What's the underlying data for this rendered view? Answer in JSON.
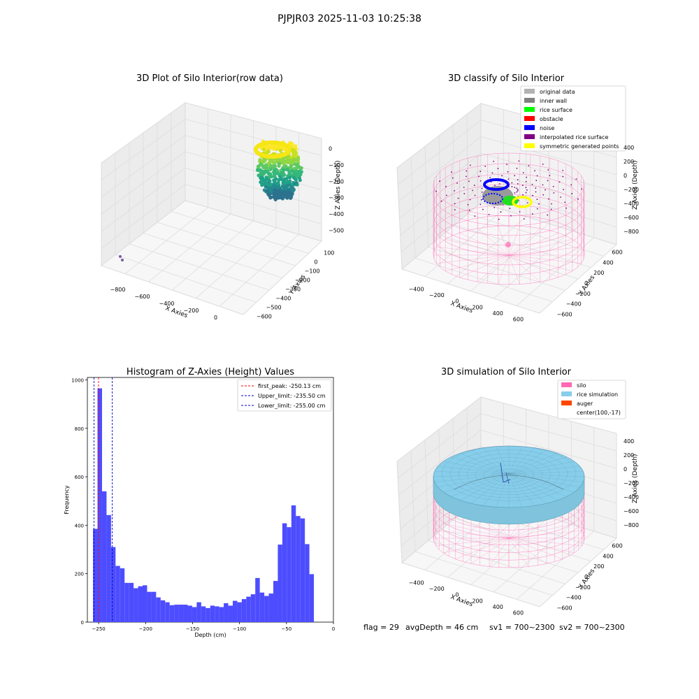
{
  "figure": {
    "suptitle": "PJPJR03 2025-11-03 10:25:38",
    "footer": {
      "flag": "flag = 29",
      "avg_depth": "avgDepth = 46 cm",
      "sv1": "sv1 = 700~2300",
      "sv2": "sv2 = 700~2300"
    }
  },
  "colors": {
    "original_data": "#b3b3b3",
    "inner_wall": "#808080",
    "rice_surface": "#00ff00",
    "obstacle": "#ff0000",
    "noise": "#0000ff",
    "interpolated_rice_surface": "#800080",
    "symmetric_generated_points": "#ffff00",
    "silo": "#ff69b4",
    "rice_simulation": "#87ceeb",
    "auger": "#ff4500",
    "histogram_bar": "#4d4dff",
    "first_peak_line": "#ff0000",
    "limit_lines": "#0000cc",
    "pane": "#f2f2f2"
  },
  "chart_data": [
    {
      "type": "scatter3d",
      "title": "3D Plot of Silo Interior(row data)",
      "xlabel": "X Axies",
      "ylabel": "Y Axies",
      "zlabel": "Z Axies (Depth)",
      "x_ticks": [
        "−800",
        "−600",
        "−400",
        "−200",
        "0"
      ],
      "y_ticks": [
        "100",
        "0",
        "−100",
        "−200",
        "−300",
        "−400",
        "−500",
        "−600"
      ],
      "z_ticks": [
        "0",
        "−100",
        "−200",
        "−300",
        "−400",
        "−500"
      ],
      "xlim": [
        -900,
        100
      ],
      "ylim": [
        -650,
        150
      ],
      "zlim": [
        -530,
        20
      ],
      "colormap": "viridis",
      "point_cloud": {
        "x_range": [
          -50,
          100
        ],
        "y_range": [
          -150,
          50
        ],
        "z_range": [
          -320,
          -10
        ]
      },
      "outlier_points": [
        {
          "x": -880,
          "y": -600,
          "z": -530
        },
        {
          "x": -875,
          "y": -610,
          "z": -520
        }
      ]
    },
    {
      "type": "scatter3d",
      "title": "3D classify of Silo Interior",
      "xlabel": "X Axies",
      "ylabel": "Y Axies",
      "zlabel": "Z Axies (Depth)",
      "x_ticks": [
        "−400",
        "−200",
        "0",
        "200",
        "400",
        "600"
      ],
      "y_ticks": [
        "600",
        "400",
        "200",
        "0",
        "−200",
        "−400",
        "−600"
      ],
      "z_ticks": [
        "400",
        "200",
        "0",
        "−200",
        "−400",
        "−600",
        "−800"
      ],
      "legend": [
        {
          "label": "original data",
          "color_key": "original_data"
        },
        {
          "label": "inner wall",
          "color_key": "inner_wall"
        },
        {
          "label": "rice surface",
          "color_key": "rice_surface"
        },
        {
          "label": "obstacle",
          "color_key": "obstacle"
        },
        {
          "label": "noise",
          "color_key": "noise"
        },
        {
          "label": "interpolated rice surface",
          "color_key": "interpolated_rice_surface"
        },
        {
          "label": "symmetric generated points",
          "color_key": "symmetric_generated_points"
        }
      ],
      "legend_position": "top-right"
    },
    {
      "type": "bar",
      "title": "Histogram of Z-Axies (Height) Values",
      "xlabel": "Depth (cm)",
      "ylabel": "Frequency",
      "xlim": [
        -262,
        0
      ],
      "ylim": [
        0,
        1010
      ],
      "x_ticks": [
        -250,
        -200,
        -150,
        -100,
        -50,
        0
      ],
      "x_tick_labels": [
        "−250",
        "−200",
        "−150",
        "−100",
        "−50",
        "0"
      ],
      "y_ticks": [
        0,
        200,
        400,
        600,
        800,
        1000
      ],
      "bin_start": -256,
      "bin_width": 4.8,
      "values": [
        385,
        965,
        540,
        442,
        310,
        232,
        222,
        162,
        162,
        140,
        148,
        152,
        125,
        125,
        102,
        90,
        82,
        70,
        72,
        72,
        72,
        68,
        62,
        82,
        65,
        58,
        68,
        65,
        62,
        78,
        68,
        88,
        82,
        95,
        105,
        115,
        182,
        122,
        108,
        118,
        170,
        320,
        408,
        392,
        482,
        438,
        428,
        322,
        198
      ],
      "lines": [
        {
          "label": "first_peak: -250.13 cm",
          "x": -250.13,
          "color_key": "first_peak_line"
        },
        {
          "label": "Upper_limit: -235.50 cm",
          "x": -235.5,
          "color_key": "limit_lines"
        },
        {
          "label": "Lower_limit: -255.00 cm",
          "x": -255.0,
          "color_key": "limit_lines"
        }
      ],
      "legend_position": "top-right"
    },
    {
      "type": "surface3d",
      "title": "3D simulation of Silo Interior",
      "xlabel": "X Axies",
      "ylabel": "Y Axies",
      "zlabel": "Z Axies (Depth)",
      "x_ticks": [
        "−400",
        "−200",
        "0",
        "200",
        "400",
        "600"
      ],
      "y_ticks": [
        "600",
        "400",
        "200",
        "0",
        "−200",
        "−400",
        "−600"
      ],
      "z_ticks": [
        "400",
        "200",
        "0",
        "−200",
        "−400",
        "−600",
        "−800"
      ],
      "legend": [
        {
          "label": "silo",
          "color_key": "silo"
        },
        {
          "label": "rice simulation",
          "color_key": "rice_simulation"
        },
        {
          "label": "auger",
          "color_key": "auger"
        },
        {
          "label": "center(100,-17)",
          "color_key": null
        }
      ],
      "legend_position": "top-right"
    }
  ]
}
